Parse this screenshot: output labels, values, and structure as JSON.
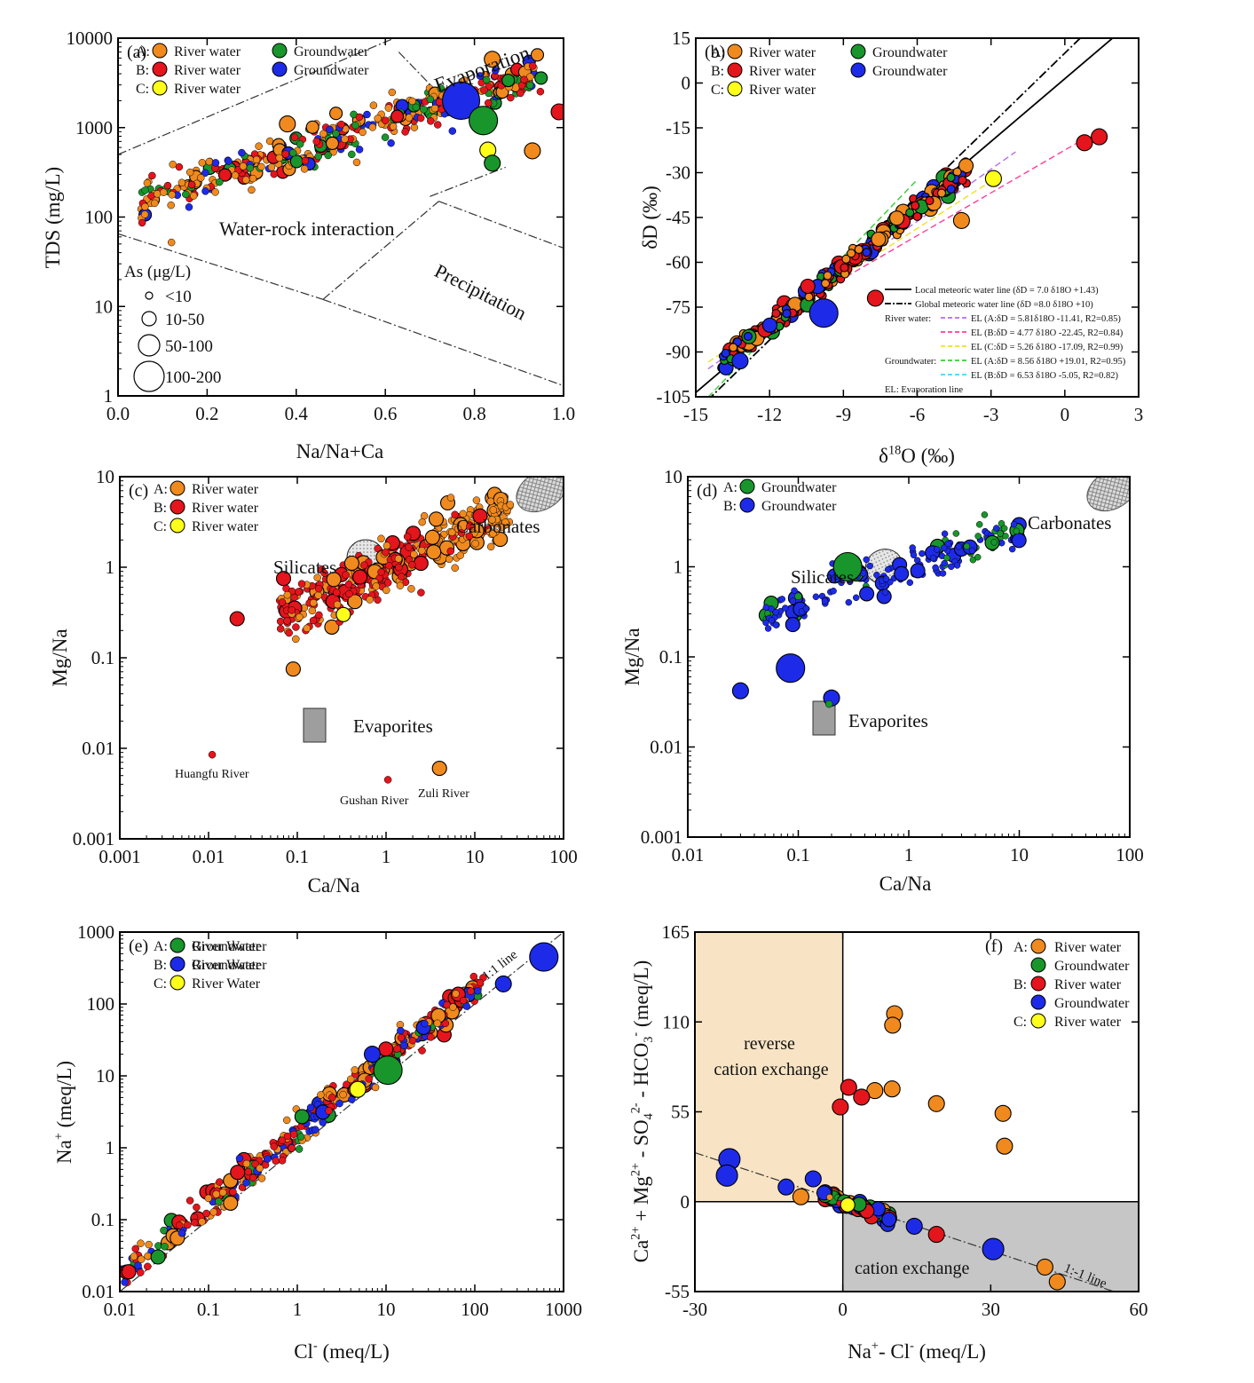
{
  "colors": {
    "orange": "#f08a1e",
    "red": "#e4151c",
    "green": "#19962b",
    "blue": "#1d2be8",
    "yellow": "#ffff1a",
    "reverse_region": "#f8e4c4",
    "cation_region": "#c6c6c6",
    "mineral_ellipse": "#d9d9d9",
    "evaporite_box": "#9e9e9e"
  },
  "chart_data": [
    {
      "panel": "(a)",
      "type": "scatter",
      "xlabel": "Na/Na+Ca",
      "ylabel": "TDS (mg/L)",
      "xlim": [
        0.0,
        1.0
      ],
      "ylim": [
        1,
        10000
      ],
      "yscale": "log",
      "xticks": [
        "0.0",
        "0.2",
        "0.4",
        "0.6",
        "0.8",
        "1.0"
      ],
      "yticks": [
        "1",
        "10",
        "100",
        "1000",
        "10000"
      ],
      "legend": [
        {
          "group": "A:",
          "entries": [
            {
              "name": "River water",
              "color": "orange"
            },
            {
              "name": "Groundwater",
              "color": "green"
            }
          ]
        },
        {
          "group": "B:",
          "entries": [
            {
              "name": "River water",
              "color": "red"
            },
            {
              "name": "Groundwater",
              "color": "blue"
            }
          ]
        },
        {
          "group": "C:",
          "entries": [
            {
              "name": "River water",
              "color": "yellow"
            }
          ]
        }
      ],
      "regions": [
        "Evaporation",
        "Water-rock interaction",
        "Precipitation"
      ],
      "size_legend": {
        "title": "As (μg/L)",
        "classes": [
          "<10",
          "10-50",
          "50-100",
          "100-200"
        ]
      },
      "notable_points": [
        {
          "x": 0.77,
          "y": 2000,
          "color": "blue",
          "size": "100-200"
        },
        {
          "x": 0.82,
          "y": 1200,
          "color": "green",
          "size": "50-100"
        },
        {
          "x": 0.38,
          "y": 1100,
          "color": "orange",
          "size": "10-50"
        },
        {
          "x": 0.83,
          "y": 560,
          "color": "yellow",
          "size": "10-50"
        },
        {
          "x": 0.84,
          "y": 400,
          "color": "green",
          "size": "10-50"
        },
        {
          "x": 0.99,
          "y": 1500,
          "color": "red",
          "size": "10-50"
        },
        {
          "x": 0.84,
          "y": 5800,
          "color": "orange",
          "size": "10-50"
        },
        {
          "x": 0.93,
          "y": 550,
          "color": "orange",
          "size": "10-50"
        },
        {
          "x": 0.12,
          "y": 52,
          "color": "orange",
          "size": "<10"
        }
      ],
      "cloud_description": "~500 samples mostly between x 0.05-0.95 and TDS 80-4000 mg/L, rising with Na/(Na+Ca)"
    },
    {
      "panel": "(b)",
      "type": "scatter",
      "xlabel": "δ18O (‰)",
      "ylabel": "δD (‰)",
      "xlim": [
        -15,
        3
      ],
      "ylim": [
        -105,
        15
      ],
      "xticks": [
        "-15",
        "-12",
        "-9",
        "-6",
        "-3",
        "0",
        "3"
      ],
      "yticks": [
        "-105",
        "-90",
        "-75",
        "-60",
        "-45",
        "-30",
        "-15",
        "0",
        "15"
      ],
      "legend": [
        {
          "group": "A:",
          "entries": [
            {
              "name": "River water",
              "color": "orange"
            },
            {
              "name": "Groundwater",
              "color": "green"
            }
          ]
        },
        {
          "group": "B:",
          "entries": [
            {
              "name": "River water",
              "color": "red"
            },
            {
              "name": "Groundwater",
              "color": "blue"
            }
          ]
        },
        {
          "group": "C:",
          "entries": [
            {
              "name": "River water",
              "color": "yellow"
            }
          ]
        }
      ],
      "lines": [
        {
          "name": "Local meteoric water line (δD = 7.0 δ18O +1.43)",
          "slope": 7.0,
          "intercept": 1.43,
          "style": "solid",
          "color": "#000000"
        },
        {
          "name": "Global meteoric water line (δD =8.0 δ18O +10)",
          "slope": 8.0,
          "intercept": 10,
          "style": "dashdot",
          "color": "#000000"
        },
        {
          "group": "River water:",
          "name": "EL (A:δD = 5.81δ18O -11.41, R2=0.85)",
          "slope": 5.81,
          "intercept": -11.41,
          "style": "dashed",
          "color": "#b46cf0"
        },
        {
          "name": "EL (B:δD = 4.77 δ18O -22.45, R2=0.84)",
          "slope": 4.77,
          "intercept": -22.45,
          "style": "dashed",
          "color": "#ff3c9c"
        },
        {
          "name": "EL (C:δD = 5.26 δ18O -17.09, R2=0.99)",
          "slope": 5.26,
          "intercept": -17.09,
          "style": "dashed",
          "color": "#f0e020"
        },
        {
          "group": "Groundwater:",
          "name": "EL (A:δD = 8.56 δ18O +19.01, R2=0.95)",
          "slope": 8.56,
          "intercept": 19.01,
          "style": "dashed",
          "color": "#30d030"
        },
        {
          "name": "EL (B:δD = 6.53 δ18O -5.05, R2=0.82)",
          "slope": 6.53,
          "intercept": -5.05,
          "style": "dashed",
          "color": "#40d8f0"
        }
      ],
      "line_note": "EL: Evaporation line",
      "notable_points": [
        {
          "x": -9.8,
          "y": -77,
          "color": "blue",
          "size": "50-100"
        },
        {
          "x": -13.2,
          "y": -93,
          "color": "blue",
          "size": "10-50"
        },
        {
          "x": -2.9,
          "y": -32,
          "color": "yellow",
          "size": "10-50"
        },
        {
          "x": 1.4,
          "y": -18,
          "color": "red",
          "size": "10-50"
        },
        {
          "x": 0.8,
          "y": -20,
          "color": "red",
          "size": "10-50"
        },
        {
          "x": -7.7,
          "y": -72,
          "color": "red",
          "size": "10-50"
        },
        {
          "x": -4.2,
          "y": -46,
          "color": "orange",
          "size": "10-50"
        }
      ],
      "cloud_description": "samples clustered along the meteoric water lines between δ18O -14 and -4 ‰, δD -100 to -40 ‰"
    },
    {
      "panel": "(c)",
      "type": "scatter",
      "xlabel": "Ca/Na",
      "ylabel": "Mg/Na",
      "xscale": "log",
      "yscale": "log",
      "xlim": [
        0.001,
        100
      ],
      "ylim": [
        0.001,
        10
      ],
      "xticks": [
        "0.001",
        "0.01",
        "0.1",
        "1",
        "10",
        "100"
      ],
      "yticks": [
        "0.001",
        "0.01",
        "0.1",
        "1",
        "10"
      ],
      "legend": [
        {
          "group": "A:",
          "entries": [
            {
              "name": "River water",
              "color": "orange"
            }
          ]
        },
        {
          "group": "B:",
          "entries": [
            {
              "name": "River water",
              "color": "red"
            }
          ]
        },
        {
          "group": "C:",
          "entries": [
            {
              "name": "River water",
              "color": "yellow"
            }
          ]
        }
      ],
      "end_members": [
        "Silicates",
        "Carbonates",
        "Evaporites"
      ],
      "annotations": [
        "Huangfu River",
        "Gushan River",
        "Zuli River"
      ],
      "notable_points": [
        {
          "x": 0.011,
          "y": 0.0085,
          "color": "red",
          "label": "Huangfu River"
        },
        {
          "x": 1.05,
          "y": 0.0045,
          "color": "red",
          "label": "Gushan River"
        },
        {
          "x": 4.0,
          "y": 0.006,
          "color": "orange",
          "label": "Zuli River"
        },
        {
          "x": 0.021,
          "y": 0.27,
          "color": "red"
        },
        {
          "x": 0.07,
          "y": 0.75,
          "color": "red"
        },
        {
          "x": 0.33,
          "y": 0.3,
          "color": "yellow"
        },
        {
          "x": 0.09,
          "y": 0.075,
          "color": "orange"
        }
      ],
      "cloud_description": "main cluster between Ca/Na 0.05-30 and Mg/Na 0.07-8, trending from silicates toward carbonates"
    },
    {
      "panel": "(d)",
      "type": "scatter",
      "xlabel": "Ca/Na",
      "ylabel": "Mg/Na",
      "xscale": "log",
      "yscale": "log",
      "xlim": [
        0.01,
        100
      ],
      "ylim": [
        0.001,
        10
      ],
      "xticks": [
        "0.01",
        "0.1",
        "1",
        "10",
        "100"
      ],
      "yticks": [
        "0.001",
        "0.01",
        "0.1",
        "1",
        "10"
      ],
      "legend": [
        {
          "group": "A:",
          "entries": [
            {
              "name": "Groundwater",
              "color": "green"
            }
          ]
        },
        {
          "group": "B:",
          "entries": [
            {
              "name": "Groundwater",
              "color": "blue"
            }
          ]
        }
      ],
      "end_members": [
        "Silicates",
        "Carbonates",
        "Evaporites"
      ],
      "notable_points": [
        {
          "x": 0.28,
          "y": 1.0,
          "color": "green",
          "size": "50-100"
        },
        {
          "x": 0.085,
          "y": 0.075,
          "color": "blue",
          "size": "50-100"
        },
        {
          "x": 0.03,
          "y": 0.042,
          "color": "blue",
          "size": "10-50"
        },
        {
          "x": 0.2,
          "y": 0.035,
          "color": "blue",
          "size": "10-50"
        },
        {
          "x": 0.19,
          "y": 0.03,
          "color": "green",
          "size": "<10"
        },
        {
          "x": 0.1,
          "y": 0.47,
          "color": "green",
          "size": "<10"
        }
      ],
      "cloud_description": "groundwater samples between Ca/Na 0.03-20 and Mg/Na 0.03-6"
    },
    {
      "panel": "(e)",
      "type": "scatter",
      "xlabel": "Cl- (meq/L)",
      "ylabel": "Na+ (meq/L)",
      "xscale": "log",
      "yscale": "log",
      "xlim": [
        0.01,
        1000
      ],
      "ylim": [
        0.01,
        1000
      ],
      "xticks": [
        "0.01",
        "0.1",
        "1",
        "10",
        "100",
        "1000"
      ],
      "yticks": [
        "0.01",
        "0.1",
        "1",
        "10",
        "100",
        "1000"
      ],
      "legend": [
        {
          "group": "A:",
          "entries": [
            {
              "name": "River Water",
              "color": "orange"
            },
            {
              "name": "Groundwater",
              "color": "green"
            }
          ]
        },
        {
          "group": "B:",
          "entries": [
            {
              "name": "River Water",
              "color": "red"
            },
            {
              "name": "Groundwater",
              "color": "blue"
            }
          ]
        },
        {
          "group": "C:",
          "entries": [
            {
              "name": "River Water",
              "color": "yellow"
            }
          ]
        }
      ],
      "reference_line": "1:1 line",
      "notable_points": [
        {
          "x": 600,
          "y": 450,
          "color": "blue",
          "size": "50-100"
        },
        {
          "x": 210,
          "y": 190,
          "color": "blue",
          "size": "10-50"
        },
        {
          "x": 10.5,
          "y": 12,
          "color": "green",
          "size": "50-100"
        },
        {
          "x": 7,
          "y": 20,
          "color": "blue",
          "size": "10-50"
        },
        {
          "x": 4.8,
          "y": 6.5,
          "color": "yellow",
          "size": "10-50"
        },
        {
          "x": 0.05,
          "y": 0.065,
          "color": "blue",
          "size": "<10"
        }
      ],
      "cloud_description": "samples from Cl 0.01-600 meq/L following and slightly above the 1:1 line"
    },
    {
      "panel": "(f)",
      "type": "scatter",
      "xlabel": "Na+- Cl- (meq/L)",
      "ylabel": "Ca2+ + Mg2+ - SO42- - HCO3- (meq/L)",
      "xlim": [
        -30,
        60
      ],
      "ylim": [
        -55,
        165
      ],
      "xticks": [
        "-30",
        "0",
        "30",
        "60"
      ],
      "yticks": [
        "-55",
        "0",
        "55",
        "110",
        "165"
      ],
      "legend": [
        {
          "group": "A:",
          "entries": [
            {
              "name": "River water",
              "color": "orange"
            },
            {
              "name": "Groundwater",
              "color": "green"
            }
          ]
        },
        {
          "group": "B:",
          "entries": [
            {
              "name": "River water",
              "color": "red"
            },
            {
              "name": "Groundwater",
              "color": "blue"
            }
          ]
        },
        {
          "group": "C:",
          "entries": [
            {
              "name": "River water",
              "color": "yellow"
            }
          ]
        }
      ],
      "regions": [
        "reverse cation exchange",
        "cation exchange"
      ],
      "reference_line": "1:-1 line",
      "notable_points": [
        {
          "x": 10.5,
          "y": 115,
          "color": "orange"
        },
        {
          "x": 10.1,
          "y": 108,
          "color": "orange"
        },
        {
          "x": 19,
          "y": 60,
          "color": "orange"
        },
        {
          "x": 32.5,
          "y": 54,
          "color": "orange"
        },
        {
          "x": 32.8,
          "y": 34,
          "color": "orange"
        },
        {
          "x": 41,
          "y": -40,
          "color": "orange"
        },
        {
          "x": 43.5,
          "y": -49,
          "color": "orange"
        },
        {
          "x": 10,
          "y": 69,
          "color": "orange"
        },
        {
          "x": 6.5,
          "y": 68,
          "color": "orange"
        },
        {
          "x": 3.8,
          "y": 64,
          "color": "red"
        },
        {
          "x": 1.2,
          "y": 70,
          "color": "red"
        },
        {
          "x": -0.5,
          "y": 58,
          "color": "red"
        },
        {
          "x": -23,
          "y": 26,
          "color": "blue"
        },
        {
          "x": -23.5,
          "y": 16,
          "color": "blue"
        },
        {
          "x": -11.5,
          "y": 9,
          "color": "blue"
        },
        {
          "x": -6,
          "y": 14,
          "color": "blue"
        },
        {
          "x": -8.5,
          "y": 3,
          "color": "orange"
        },
        {
          "x": 14.5,
          "y": -15,
          "color": "blue"
        },
        {
          "x": 19,
          "y": -20,
          "color": "red"
        },
        {
          "x": 30.5,
          "y": -29,
          "color": "blue"
        },
        {
          "x": 1,
          "y": -2,
          "color": "yellow"
        }
      ],
      "cloud_description": "most samples cluster near the origin along the 1:-1 line"
    }
  ]
}
